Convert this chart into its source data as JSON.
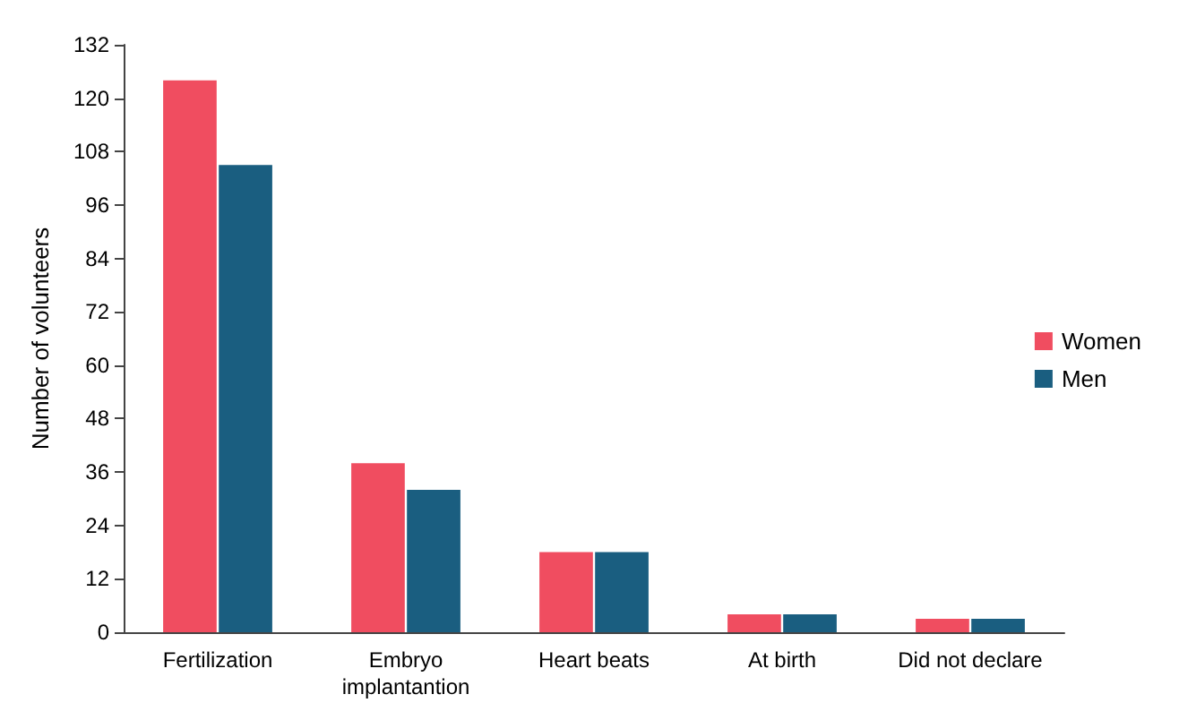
{
  "chart_data": {
    "type": "bar",
    "ylabel": "Number of volunteers",
    "categories": [
      "Fertilization",
      "Embryo\nimplantantion",
      "Heart beats",
      "At birth",
      "Did not declare"
    ],
    "series": [
      {
        "name": "Women",
        "color": "#f04d60",
        "values": [
          124,
          38,
          18,
          4,
          3
        ]
      },
      {
        "name": "Men",
        "color": "#1a5e80",
        "values": [
          105,
          32,
          18,
          4,
          3
        ]
      }
    ],
    "ylim": [
      0,
      132
    ],
    "yticks": [
      0,
      12,
      24,
      36,
      48,
      60,
      72,
      84,
      96,
      108,
      120,
      132
    ],
    "grid": false,
    "legend": "right"
  }
}
